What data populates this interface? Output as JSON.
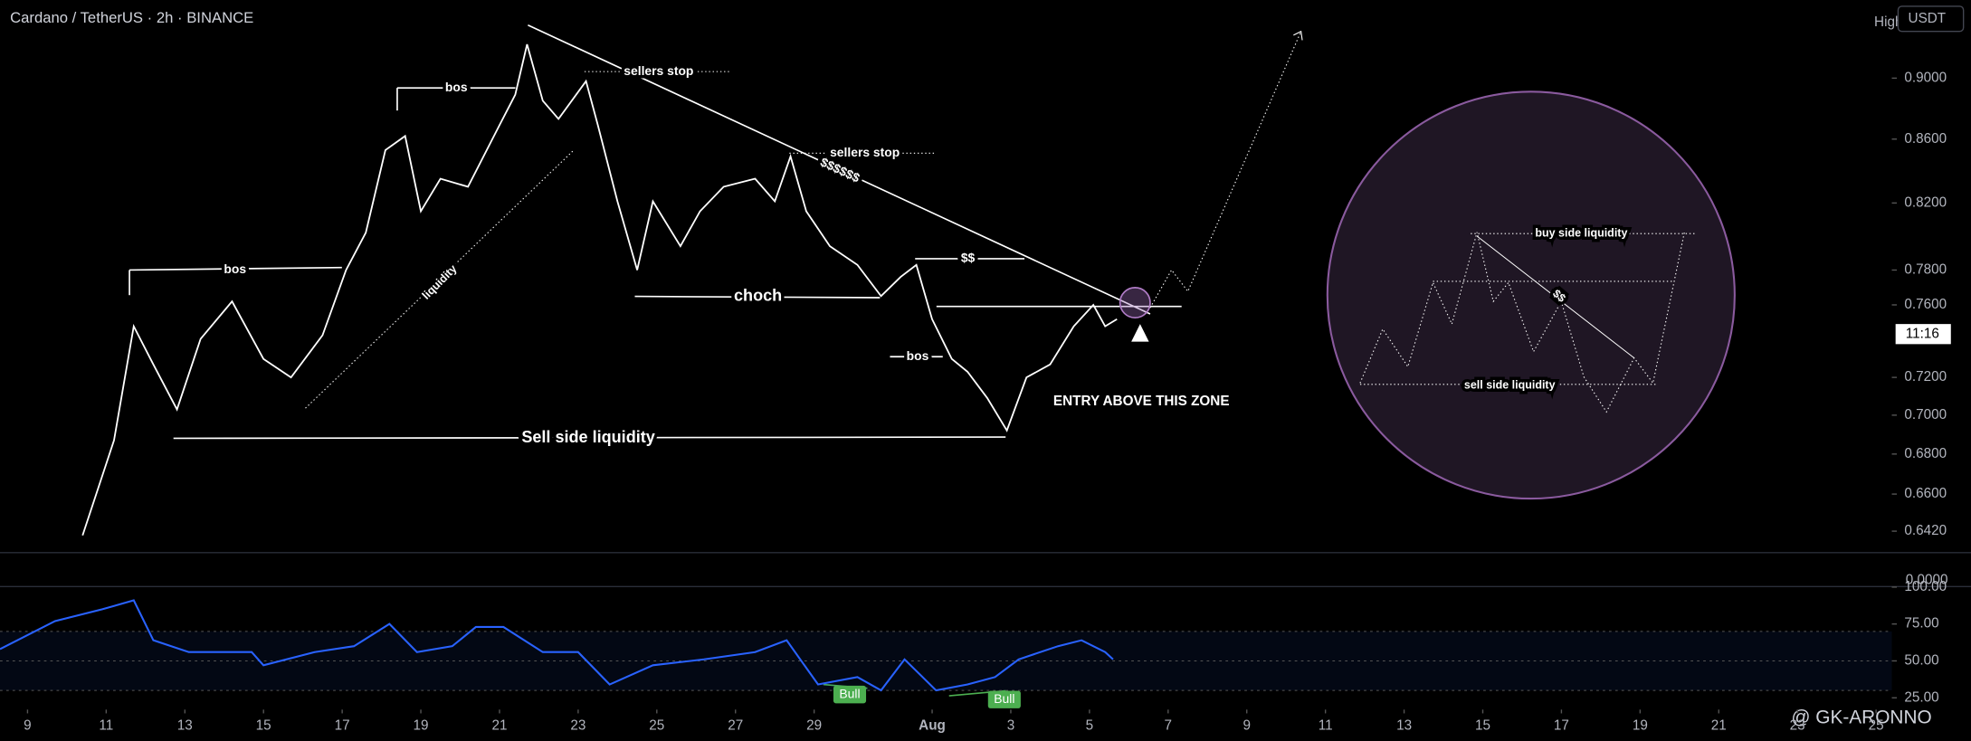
{
  "header": {
    "title": "Cardano / TetherUS · 2h · BINANCE",
    "high": "High",
    "currency": "USDT",
    "countdown": "11:16",
    "pane_label": "0.0000",
    "watermark": "@ GK-ARONNO"
  },
  "chart_data": [
    {
      "type": "line",
      "color": "#ffffff",
      "log_scale": true,
      "x": [
        10.4,
        11.2,
        11.7,
        12.2,
        12.8,
        13.4,
        14.2,
        15.0,
        15.7,
        16.5,
        17.1,
        17.6,
        18.1,
        18.6,
        19.0,
        19.5,
        20.2,
        21.0,
        21.4,
        21.7,
        22.1,
        22.5,
        23.2,
        23.5,
        24.0,
        24.5,
        24.9,
        25.6,
        26.1,
        26.7,
        27.5,
        28.0,
        28.4,
        28.8,
        29.4,
        30.1,
        30.7,
        31.2,
        31.6,
        32.0,
        32.5,
        32.9,
        33.4,
        33.9,
        34.4,
        35.0,
        35.6,
        36.1,
        36.4,
        36.7
      ],
      "values": [
        0.64,
        0.687,
        0.748,
        0.727,
        0.703,
        0.741,
        0.762,
        0.73,
        0.72,
        0.743,
        0.78,
        0.802,
        0.853,
        0.862,
        0.815,
        0.835,
        0.83,
        0.869,
        0.889,
        0.923,
        0.885,
        0.873,
        0.898,
        0.869,
        0.821,
        0.78,
        0.821,
        0.794,
        0.815,
        0.83,
        0.835,
        0.821,
        0.849,
        0.815,
        0.794,
        0.783,
        0.765,
        0.776,
        0.783,
        0.752,
        0.73,
        0.723,
        0.709,
        0.692,
        0.72,
        0.727,
        0.748,
        0.76,
        0.748,
        0.752
      ],
      "xlim": [
        8.3,
        56.4
      ],
      "xticks": [
        9,
        11,
        13,
        15,
        17,
        19,
        21,
        23,
        25,
        27,
        29,
        {
          "value": 32,
          "label": "Aug"
        },
        {
          "value": 34,
          "label": "3"
        },
        {
          "value": 36,
          "label": "5"
        },
        {
          "value": 38,
          "label": "7"
        },
        {
          "value": 40,
          "label": "9"
        },
        {
          "value": 42,
          "label": "11"
        },
        {
          "value": 44,
          "label": "13"
        },
        {
          "value": 46,
          "label": "15"
        },
        {
          "value": 48,
          "label": "17"
        },
        {
          "value": 50,
          "label": "19"
        },
        {
          "value": 52,
          "label": "21"
        },
        {
          "value": 54,
          "label": "23"
        },
        {
          "value": 56,
          "label": "25"
        }
      ],
      "ylim": [
        0.633,
        0.954
      ],
      "yticks": [
        {
          "value": 0.9,
          "label": "0.9000"
        },
        {
          "value": 0.86,
          "label": "0.8600"
        },
        {
          "value": 0.82,
          "label": "0.8200"
        },
        {
          "value": 0.78,
          "label": "0.7800"
        },
        {
          "value": 0.76,
          "label": "0.7600"
        },
        {
          "value": 0.72,
          "label": "0.7200"
        },
        {
          "value": 0.7,
          "label": "0.7000"
        },
        {
          "value": 0.68,
          "label": "0.6800"
        },
        {
          "value": 0.66,
          "label": "0.6600"
        },
        {
          "value": 0.642,
          "label": "0.6420"
        }
      ],
      "annotations": [
        "bos",
        "bos",
        "bos",
        "choch",
        "Sell side liquidity",
        "sellers stop",
        "sellers stop",
        "$$$$$$",
        "$$",
        "liquidity",
        "ENTRY ABOVE THIS ZONE",
        "buy side liquidity",
        "sell side liquidity",
        "$$"
      ]
    },
    {
      "type": "line",
      "color": "#2962ff",
      "x": [
        8.3,
        9.7,
        10.9,
        11.7,
        12.2,
        13.1,
        14.7,
        15.0,
        16.3,
        17.3,
        18.2,
        18.9,
        19.8,
        20.4,
        21.1,
        22.1,
        23.0,
        23.8,
        24.9,
        26.2,
        27.5,
        28.3,
        29.1,
        30.1,
        30.7,
        31.3,
        32.1,
        32.9,
        33.6,
        34.2,
        35.2,
        35.8,
        36.4,
        36.6
      ],
      "values": [
        58,
        77,
        85,
        91,
        64,
        56,
        56,
        47,
        56,
        60,
        75,
        56,
        60,
        73,
        73,
        56,
        56,
        34,
        47,
        51,
        56,
        64,
        34,
        39,
        30,
        51,
        30,
        34,
        39,
        51,
        60,
        64,
        56,
        51
      ],
      "ylim": [
        17,
        100.4
      ],
      "yticks": [
        {
          "value": 100,
          "label": "100.00"
        },
        {
          "value": 75,
          "label": "75.00"
        },
        {
          "value": 50,
          "label": "50.00"
        },
        {
          "value": 25,
          "label": "25.00"
        }
      ],
      "band": [
        30,
        70
      ],
      "annotations": [
        "Bull",
        "Bull"
      ]
    }
  ]
}
